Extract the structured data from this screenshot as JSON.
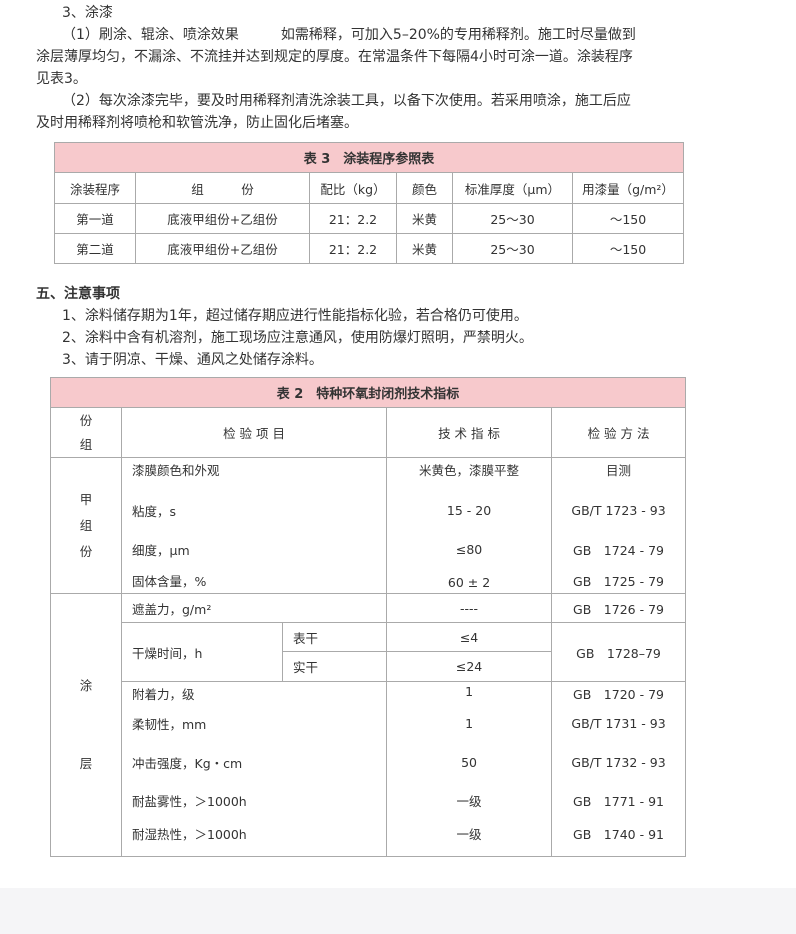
{
  "section3": {
    "heading": "3、涂漆",
    "para1_line1": "（1）刷涂、辊涂、喷涂效果　　　如需稀释，可加入5–20%的专用稀释剂。施工时尽量做到",
    "para1_line2": "涂层薄厚均匀，不漏涂、不流挂并达到规定的厚度。在常温条件下每隔4小时可涂一道。涂装程序",
    "para1_line3": "见表3。",
    "para2_line1": "（2）每次涂漆完毕，要及时用稀释剂清洗涂装工具，以备下次使用。若采用喷涂，施工后应",
    "para2_line2": "及时用稀释剂将喷枪和软管洗净，防止固化后堵塞。"
  },
  "table3": {
    "title": "表 3　涂装程序参照表",
    "headers": [
      "涂装程序",
      "组　　　份",
      "配比（kg）",
      "颜色",
      "标准厚度（μm）",
      "用漆量（g/m²）"
    ],
    "rows": [
      [
        "第一道",
        "底液甲组份+乙组份",
        "21：2.2",
        "米黄",
        "25～30",
        "～150"
      ],
      [
        "第二道",
        "底液甲组份+乙组份",
        "21：2.2",
        "米黄",
        "25～30",
        "～150"
      ]
    ]
  },
  "section5": {
    "heading": "五、注意事项",
    "items": [
      "1、涂料储存期为1年，超过储存期应进行性能指标化验，若合格仍可使用。",
      "2、涂料中含有机溶剂，施工现场应注意通风，使用防爆灯照明，严禁明火。",
      "3、请于阴凉、干燥、通风之处储存涂料。"
    ]
  },
  "table2": {
    "title": "表 2　特种环氧封闭剂技术指标",
    "headers": [
      "份\n组",
      "检 验 项 目",
      "技 术 指 标",
      "检 验 方 法"
    ],
    "group_a": "甲\n组\n份",
    "group_a_rows": [
      [
        "漆膜颜色和外观",
        "米黄色，漆膜平整",
        "目测"
      ],
      [
        "粘度，s",
        "15 - 20",
        "GB/T 1723 - 93"
      ],
      [
        "细度，μm",
        "≤80",
        "GB　1724 - 79"
      ],
      [
        "固体含量，%",
        "60 ± 2",
        "GB　1725 - 79"
      ]
    ],
    "group_b": "涂\n\n\n层",
    "covering": [
      "遮盖力，g/m²",
      "----",
      "GB　1726 - 79"
    ],
    "drying": {
      "label": "干燥时间，h",
      "sub": [
        [
          "表干",
          "≤4"
        ],
        [
          "实干",
          "≤24"
        ]
      ],
      "method": "GB　1728–79"
    },
    "group_b_rows": [
      [
        "附着力，级",
        "1",
        "GB　1720 - 79"
      ],
      [
        "柔韧性，mm",
        "1",
        "GB/T 1731 - 93"
      ],
      [
        "冲击强度，Kg・cm",
        "50",
        "GB/T 1732 - 93"
      ],
      [
        "耐盐雾性，＞1000h",
        "一级",
        "GB　1771 - 91"
      ],
      [
        "耐湿热性，＞1000h",
        "一级",
        "GB　1740 - 91"
      ]
    ]
  }
}
